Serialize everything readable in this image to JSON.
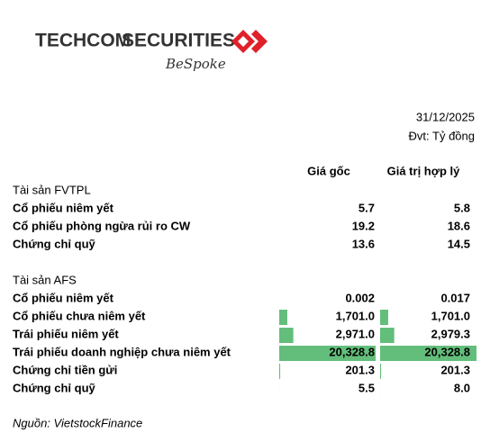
{
  "header": {
    "brand_left": "TECHCOM",
    "brand_right": "SECURITIES",
    "tagline": "BeSpoke"
  },
  "date": "31/12/2025",
  "unit": "Đvt: Tỷ đồng",
  "table": {
    "columns": [
      "Giá gốc",
      "Giá trị hợp lý"
    ],
    "bar_color": "#63be7b",
    "sections": [
      {
        "title": "Tài sản FVTPL",
        "data_bars": false,
        "rows": [
          {
            "label": "Cổ phiếu niêm yết",
            "cells": [
              {
                "value": 5.7,
                "label": "5.7"
              },
              {
                "value": 5.8,
                "label": "5.8"
              }
            ]
          },
          {
            "label": "Cổ phiếu phòng ngừa rủi ro CW",
            "cells": [
              {
                "value": 19.2,
                "label": "19.2"
              },
              {
                "value": 18.6,
                "label": "18.6"
              }
            ]
          },
          {
            "label": "Chứng chỉ quỹ",
            "cells": [
              {
                "value": 13.6,
                "label": "13.6"
              },
              {
                "value": 14.5,
                "label": "14.5"
              }
            ]
          }
        ]
      },
      {
        "title": "Tài sản AFS",
        "data_bars": true,
        "rows": [
          {
            "label": "Cổ phiếu niêm yết",
            "cells": [
              {
                "value": 0.002,
                "label": "0.002"
              },
              {
                "value": 0.017,
                "label": "0.017"
              }
            ]
          },
          {
            "label": "Cổ phiếu chưa niêm yết",
            "cells": [
              {
                "value": 1701.0,
                "label": "1,701.0"
              },
              {
                "value": 1701.0,
                "label": "1,701.0"
              }
            ]
          },
          {
            "label": "Trái phiếu niêm yết",
            "cells": [
              {
                "value": 2971.0,
                "label": "2,971.0"
              },
              {
                "value": 2979.3,
                "label": "2,979.3"
              }
            ]
          },
          {
            "label": "Trái phiếu doanh nghiệp chưa niêm yết",
            "cells": [
              {
                "value": 20328.8,
                "label": "20,328.8"
              },
              {
                "value": 20328.8,
                "label": "20,328.8"
              }
            ]
          },
          {
            "label": "Chứng chỉ tiền gửi",
            "cells": [
              {
                "value": 201.3,
                "label": "201.3"
              },
              {
                "value": 201.3,
                "label": "201.3"
              }
            ]
          },
          {
            "label": "Chứng chỉ quỹ",
            "cells": [
              {
                "value": 5.5,
                "label": "5.5"
              },
              {
                "value": 8.0,
                "label": "8.0"
              }
            ]
          }
        ]
      }
    ]
  },
  "source": "Nguồn: VietstockFinance"
}
